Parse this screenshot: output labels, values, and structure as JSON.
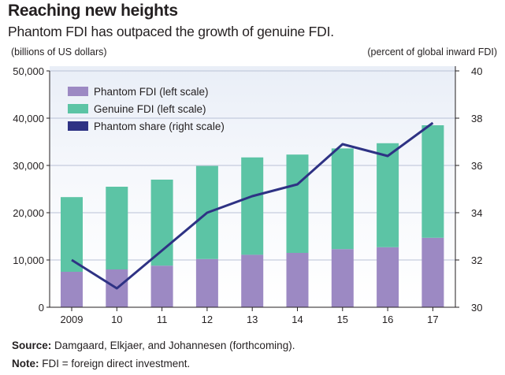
{
  "title": "Reaching new heights",
  "subtitle": "Phantom FDI has outpaced the growth of genuine FDI.",
  "left_unit": "(billions of US dollars)",
  "right_unit": "(percent of global inward FDI)",
  "source_label": "Source:",
  "source_text": "Damgaard, Elkjaer, and Johannesen (forthcoming).",
  "note_label": "Note:",
  "note_text": "FDI = foreign direct investment.",
  "colors": {
    "phantom": "#9c89c3",
    "genuine": "#5cc4a5",
    "share_line": "#2e3284",
    "background_top": "#eef1f8"
  },
  "chart_data": {
    "type": "bar",
    "stacked": true,
    "categories": [
      "2009",
      "10",
      "11",
      "12",
      "13",
      "14",
      "15",
      "16",
      "17"
    ],
    "series": [
      {
        "name": "Phantom FDI (left scale)",
        "type": "bar",
        "axis": "left",
        "values": [
          7500,
          8000,
          8800,
          10200,
          11100,
          11500,
          12300,
          12700,
          14700
        ]
      },
      {
        "name": "Genuine FDI (left scale)",
        "type": "bar",
        "axis": "left",
        "values": [
          15800,
          17500,
          18200,
          19700,
          20600,
          20800,
          21300,
          22000,
          23800
        ]
      },
      {
        "name": "Phantom share (right scale)",
        "type": "line",
        "axis": "right",
        "values": [
          32.0,
          30.8,
          32.4,
          34.0,
          34.7,
          35.2,
          36.9,
          36.4,
          37.8
        ]
      }
    ],
    "left_axis": {
      "ylim": [
        0,
        50000
      ],
      "ticks": [
        0,
        10000,
        20000,
        30000,
        40000,
        50000
      ],
      "tick_labels": [
        "0",
        "10,000",
        "20,000",
        "30,000",
        "40,000",
        "50,000"
      ]
    },
    "right_axis": {
      "ylim": [
        30,
        40
      ],
      "ticks": [
        30,
        32,
        34,
        36,
        38,
        40
      ],
      "tick_labels": [
        "30",
        "32",
        "34",
        "36",
        "38",
        "40"
      ]
    },
    "legend": [
      "Phantom FDI (left scale)",
      "Genuine FDI (left scale)",
      "Phantom share (right scale)"
    ],
    "legend_position": "top-left",
    "grid": true
  }
}
